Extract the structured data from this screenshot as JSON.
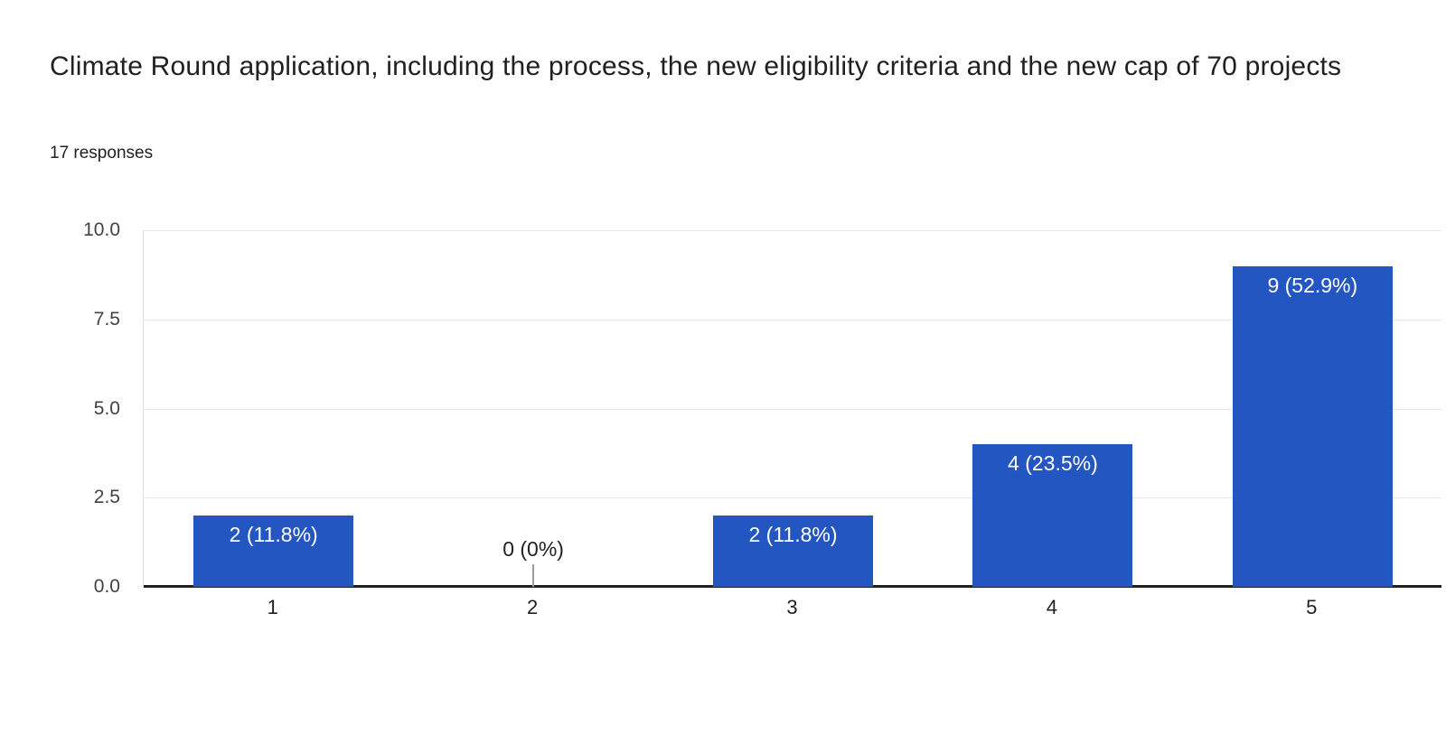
{
  "header": {
    "title": "Climate Round application, including the process, the new eligibility criteria and the new cap of 70 projects",
    "responses_count": "17 responses"
  },
  "chart_data": {
    "type": "bar",
    "title": "Climate Round application, including the process, the new eligibility criteria and the new cap of 70 projects",
    "subtitle": "17 responses",
    "categories": [
      "1",
      "2",
      "3",
      "4",
      "5"
    ],
    "values": [
      2,
      0,
      2,
      4,
      9
    ],
    "bar_labels": [
      "2 (11.8%)",
      "0 (0%)",
      "2 (11.8%)",
      "4 (23.5%)",
      "9 (52.9%)"
    ],
    "xlabel": "",
    "ylabel": "",
    "ylim": [
      0,
      10
    ],
    "yticks": [
      "0.0",
      "2.5",
      "5.0",
      "7.5",
      "10.0"
    ],
    "grid": true,
    "legend": "none",
    "colors": {
      "bar": "#2456c2",
      "bar_label": "#ffffff",
      "axis_label": "#424242",
      "x_label": "#212121",
      "zero_label": "#212121",
      "gridline": "#e8e8e8",
      "plot_border": "#e0e0e0",
      "baseline": "#212121",
      "zero_stub": "#9e9e9e",
      "title": "#212121",
      "subtitle": "#202124"
    }
  }
}
